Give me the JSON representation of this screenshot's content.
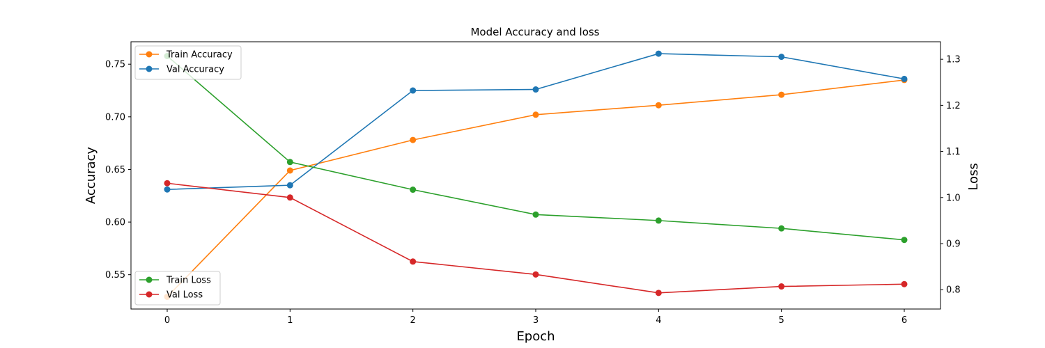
{
  "chart_data": {
    "type": "line",
    "title": "Model Accuracy and loss",
    "xlabel": "Epoch",
    "ylabel_left": "Accuracy",
    "ylabel_right": "Loss",
    "x": [
      0,
      1,
      2,
      3,
      4,
      5,
      6
    ],
    "x_ticks": [
      "0",
      "1",
      "2",
      "3",
      "4",
      "5",
      "6"
    ],
    "ylim_left": [
      0.5174,
      0.7713
    ],
    "ylim_right": [
      0.758,
      1.338
    ],
    "y_ticks_left": [
      "0.55",
      "0.60",
      "0.65",
      "0.70",
      "0.75"
    ],
    "y_ticks_right": [
      "0.8",
      "0.9",
      "1.0",
      "1.1",
      "1.2",
      "1.3"
    ],
    "grid": false,
    "series": [
      {
        "name": "Train Accuracy",
        "axis": "left",
        "color": "#ff7f0e",
        "values": [
          0.529,
          0.649,
          0.678,
          0.702,
          0.711,
          0.721,
          0.735
        ]
      },
      {
        "name": "Val Accuracy",
        "axis": "left",
        "color": "#1f77b4",
        "values": [
          0.631,
          0.635,
          0.725,
          0.726,
          0.76,
          0.757,
          0.736
        ]
      },
      {
        "name": "Train Loss",
        "axis": "right",
        "color": "#2ca02c",
        "values": [
          1.307,
          1.077,
          1.017,
          0.963,
          0.95,
          0.933,
          0.908
        ]
      },
      {
        "name": "Val Loss",
        "axis": "right",
        "color": "#d62728",
        "values": [
          1.031,
          1.0,
          0.861,
          0.833,
          0.793,
          0.807,
          0.812
        ]
      }
    ],
    "legends": [
      {
        "placement": "upper-left",
        "entries": [
          "Train Accuracy",
          "Val Accuracy"
        ]
      },
      {
        "placement": "lower-left",
        "entries": [
          "Train Loss",
          "Val Loss"
        ]
      }
    ]
  }
}
